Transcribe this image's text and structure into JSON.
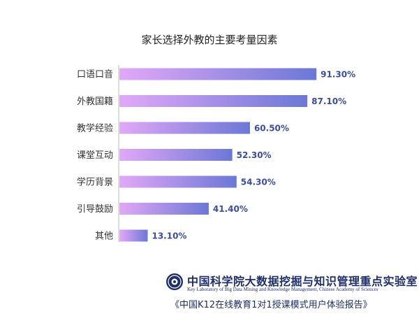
{
  "chart_data": {
    "type": "bar",
    "orientation": "horizontal",
    "title": "家长选择外教的主要考量因素",
    "categories": [
      "口语口音",
      "外教国籍",
      "教学经验",
      "课堂互动",
      "学历背景",
      "引导鼓励",
      "其他"
    ],
    "values": [
      91.3,
      87.1,
      60.5,
      52.3,
      54.3,
      41.4,
      13.1
    ],
    "value_labels": [
      "91.30%",
      "87.10%",
      "60.50%",
      "52.30%",
      "54.30%",
      "41.40%",
      "13.10%"
    ],
    "unit": "%",
    "xlim": [
      0,
      100
    ],
    "xlabel": "",
    "ylabel": "",
    "grid": false,
    "legend": "none",
    "bar_gradient": [
      "#e2a8f8",
      "#6b78d6"
    ],
    "value_label_color": "#3b4da0"
  },
  "footer": {
    "institution_cn": "中国科学院大数据挖掘与知识管理重点实验室",
    "institution_en": "Key Laboratory of Big Data Mining and Knowledge Management, Chinese Academy of Sciences",
    "report_title": "《中国K12在线教育1对1授课模式用户体验报告》",
    "brand_color": "#1e2f6b"
  }
}
